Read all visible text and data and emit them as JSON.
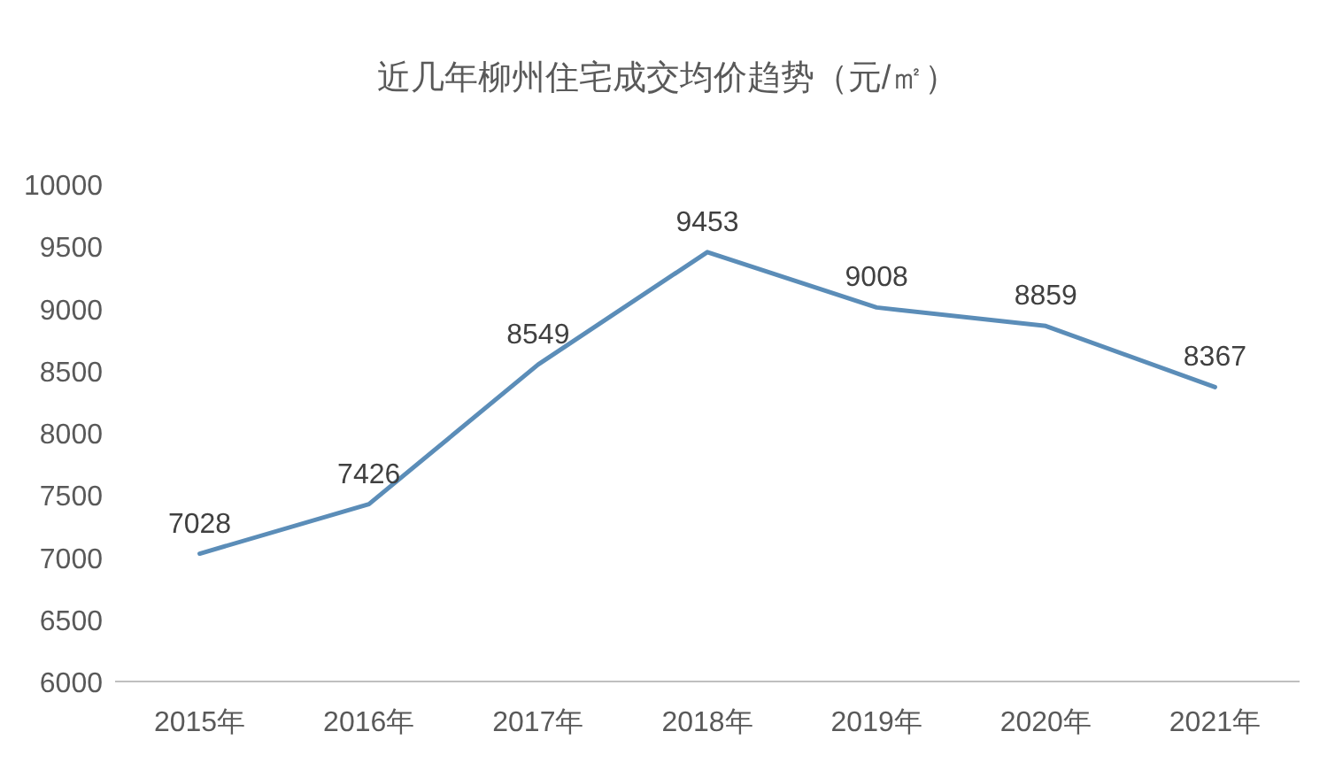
{
  "chart_data": {
    "type": "line",
    "title": "近几年柳州住宅成交均价趋势（元/㎡）",
    "categories": [
      "2015年",
      "2016年",
      "2017年",
      "2018年",
      "2019年",
      "2020年",
      "2021年"
    ],
    "series": [
      {
        "color": "#5b8db8",
        "values": [
          7028,
          7426,
          8549,
          9453,
          9008,
          8859,
          8367
        ]
      }
    ],
    "ylim": [
      6000,
      10000
    ],
    "yticks": [
      6000,
      6500,
      7000,
      7500,
      8000,
      8500,
      9000,
      9500,
      10000
    ],
    "data_labels": true,
    "grid": false,
    "marker": "none",
    "line_style": "solid"
  }
}
